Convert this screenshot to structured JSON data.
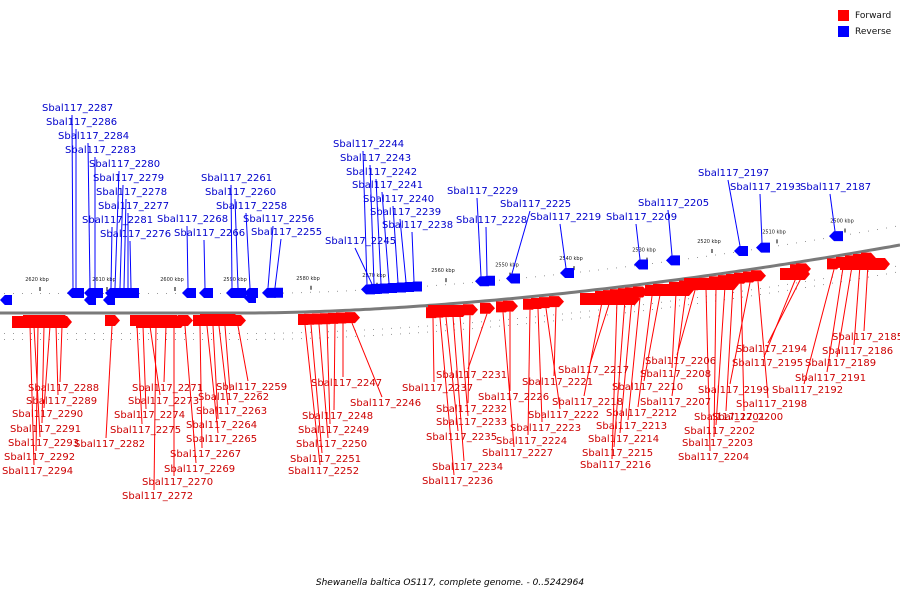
{
  "legend": {
    "forward": {
      "label": "Forward",
      "color": "#ff0000"
    },
    "reverse": {
      "label": "Reverse",
      "color": "#0000ff"
    }
  },
  "caption": "Shewanella baltica OS117, complete genome. - 0..5242964",
  "ticks": [
    "2500 kbp",
    "2510 kbp",
    "2520 kbp",
    "2530 kbp",
    "2540 kbp",
    "2550 kbp",
    "2560 kbp",
    "2570 kbp",
    "2580 kbp",
    "2590 kbp",
    "2600 kbp",
    "2610 kbp",
    "2620 kbp"
  ],
  "reverse_genes": [
    "Sbal117_2187",
    "Sbal117_2193",
    "Sbal117_2197",
    "Sbal117_2205",
    "Sbal117_2209",
    "Sbal117_2219",
    "Sbal117_2225",
    "Sbal117_2228",
    "Sbal117_2229",
    "Sbal117_2238",
    "Sbal117_2239",
    "Sbal117_2240",
    "Sbal117_2241",
    "Sbal117_2242",
    "Sbal117_2243",
    "Sbal117_2244",
    "Sbal117_2245",
    "Sbal117_2255",
    "Sbal117_2256",
    "Sbal117_2258",
    "Sbal117_2260",
    "Sbal117_2261",
    "Sbal117_2266",
    "Sbal117_2268",
    "Sbal117_2276",
    "Sbal117_2277",
    "Sbal117_2278",
    "Sbal117_2279",
    "Sbal117_2280",
    "Sbal117_2281",
    "Sbal117_2283",
    "Sbal117_2284",
    "Sbal117_2286",
    "Sbal117_2287"
  ],
  "forward_genes": [
    "Sbal117_2185",
    "Sbal117_2186",
    "Sbal117_2189",
    "Sbal117_2191",
    "Sbal117_2192",
    "Sbal117_2194",
    "Sbal117_2195",
    "Sbal117_2198",
    "Sbal117_2199",
    "Sbal117_2200",
    "Sbal117_2201",
    "Sbal117_2202",
    "Sbal117_2203",
    "Sbal117_2204",
    "Sbal117_2206",
    "Sbal117_2207",
    "Sbal117_2208",
    "Sbal117_2210",
    "Sbal117_2212",
    "Sbal117_2213",
    "Sbal117_2214",
    "Sbal117_2215",
    "Sbal117_2216",
    "Sbal117_2217",
    "Sbal117_2218",
    "Sbal117_2221",
    "Sbal117_2222",
    "Sbal117_2223",
    "Sbal117_2224",
    "Sbal117_2226",
    "Sbal117_2227",
    "Sbal117_2231",
    "Sbal117_2232",
    "Sbal117_2233",
    "Sbal117_2234",
    "Sbal117_2235",
    "Sbal117_2236",
    "Sbal117_2237",
    "Sbal117_2246",
    "Sbal117_2247",
    "Sbal117_2248",
    "Sbal117_2249",
    "Sbal117_2250",
    "Sbal117_2251",
    "Sbal117_2252",
    "Sbal117_2259",
    "Sbal117_2262",
    "Sbal117_2263",
    "Sbal117_2264",
    "Sbal117_2265",
    "Sbal117_2267",
    "Sbal117_2269",
    "Sbal117_2270",
    "Sbal117_2271",
    "Sbal117_2272",
    "Sbal117_2273",
    "Sbal117_2274",
    "Sbal117_2275",
    "Sbal117_2282",
    "Sbal117_2288",
    "Sbal117_2289",
    "Sbal117_2290",
    "Sbal117_2291",
    "Sbal117_2292",
    "Sbal117_2293",
    "Sbal117_2294"
  ]
}
